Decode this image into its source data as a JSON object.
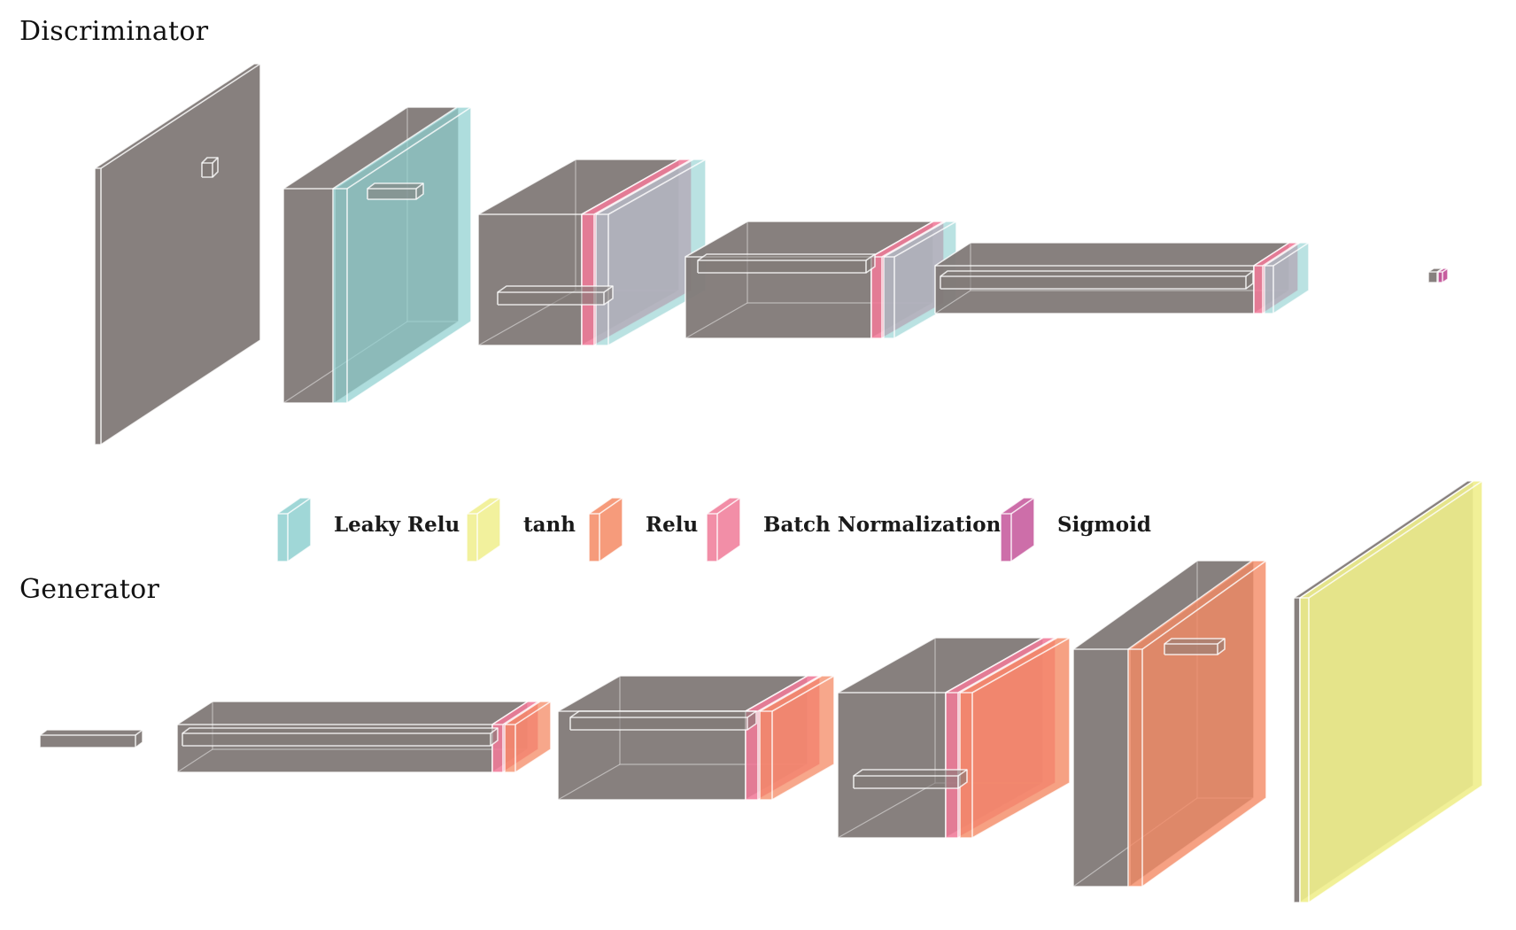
{
  "sections": {
    "discriminator": "Discriminator",
    "generator": "Generator"
  },
  "legend": [
    {
      "key": "leaky",
      "label": "Leaky Relu"
    },
    {
      "key": "tanh",
      "label": "tanh"
    },
    {
      "key": "relu",
      "label": "Relu"
    },
    {
      "key": "bn",
      "label": "Batch Normalization"
    },
    {
      "key": "sigmoid",
      "label": "Sigmoid"
    }
  ],
  "colors": {
    "block": "#817977",
    "leaky": "#8fd0d0",
    "tanh": "#f0ee8c",
    "relu": "#f48a64",
    "bn": "#f07a98",
    "sigmoid": "#c4559a"
  }
}
